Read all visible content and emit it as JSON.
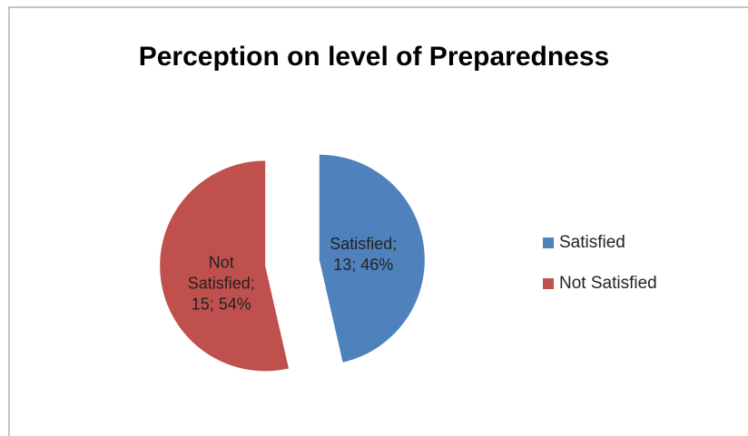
{
  "chart_data": {
    "type": "pie",
    "title": "Perception on level of Preparedness",
    "categories": [
      "Satisfied",
      "Not Satisfied"
    ],
    "values": [
      13,
      15
    ],
    "value_labels": [
      "Satisfied; 13; 46%",
      "Not Satisfied; 15; 54%"
    ],
    "colors": [
      "#4f81bd",
      "#c0504d"
    ],
    "legend": "right",
    "exploded": true
  }
}
